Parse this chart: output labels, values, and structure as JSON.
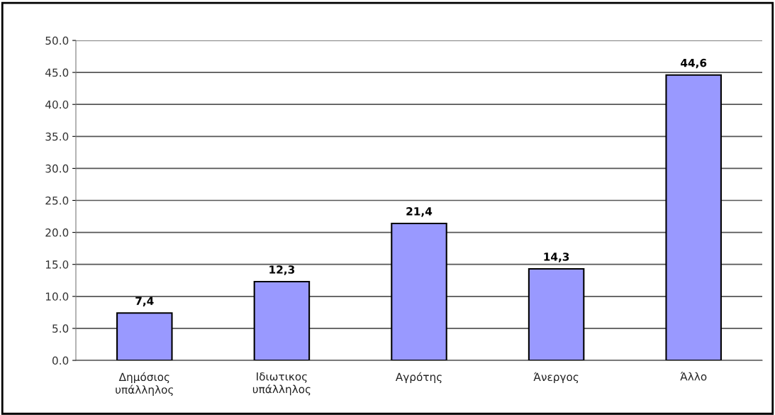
{
  "chart_data": {
    "type": "bar",
    "categories": [
      "Δημόσιος\nυπάλληλος",
      "Ιδιωτικος\nυπάλληλος",
      "Αγρότης",
      "Άνεργος",
      "Άλλο"
    ],
    "values": [
      7.4,
      12.3,
      21.4,
      14.3,
      44.6
    ],
    "value_labels": [
      "7,4",
      "12,3",
      "21,4",
      "14,3",
      "44,6"
    ],
    "color": "#9999ff",
    "ylim": [
      0,
      50
    ],
    "yticks": [
      {
        "value": 0,
        "label": "0.0"
      },
      {
        "value": 5,
        "label": "5.0"
      },
      {
        "value": 10,
        "label": "10.0"
      },
      {
        "value": 15,
        "label": "15.0"
      },
      {
        "value": 20,
        "label": "20.0"
      },
      {
        "value": 25,
        "label": "25.0"
      },
      {
        "value": 30,
        "label": "30.0"
      },
      {
        "value": 35,
        "label": "35.0"
      },
      {
        "value": 40,
        "label": "40.0"
      },
      {
        "value": 45,
        "label": "45.0"
      },
      {
        "value": 50,
        "label": "50.0"
      }
    ],
    "grid": "y",
    "legend": false
  }
}
